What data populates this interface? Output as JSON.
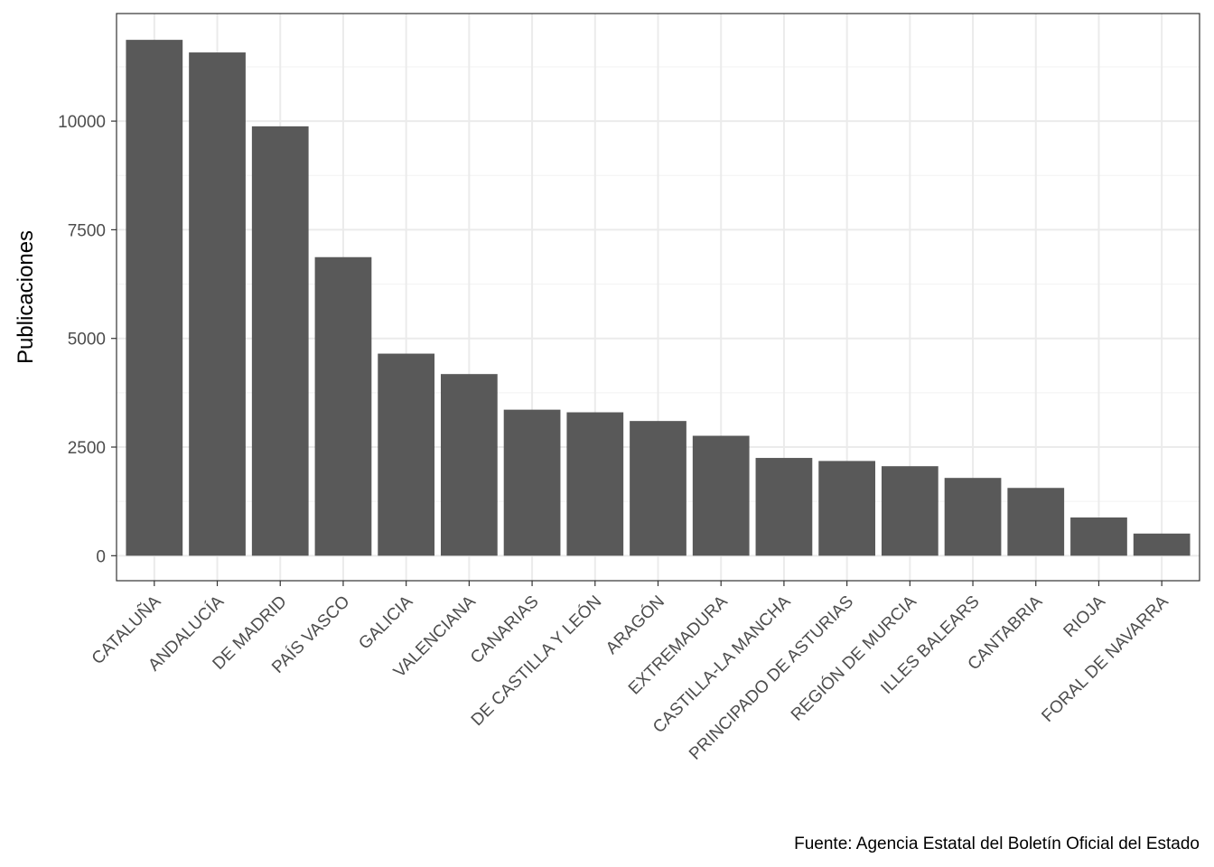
{
  "chart_data": {
    "type": "bar",
    "categories": [
      "CATALUÑA",
      "ANDALUCÍA",
      "DE MADRID",
      "PAÍS VASCO",
      "GALICIA",
      "VALENCIANA",
      "CANARIAS",
      "DE CASTILLA Y LEÓN",
      "ARAGÓN",
      "EXTREMADURA",
      "CASTILLA-LA MANCHA",
      "PRINCIPADO DE ASTURIAS",
      "REGIÓN DE MURCIA",
      "ILLES BALEARS",
      "CANTABRIA",
      "RIOJA",
      "FORAL DE NAVARRA"
    ],
    "values": [
      11870,
      11580,
      9880,
      6870,
      4650,
      4180,
      3360,
      3300,
      3100,
      2760,
      2250,
      2180,
      2060,
      1790,
      1560,
      880,
      510
    ],
    "ylabel": "Publicaciones",
    "xlabel": "",
    "ylim": [
      -575,
      12475
    ],
    "yticks": [
      0,
      2500,
      5000,
      7500,
      10000
    ],
    "ytick_labels": [
      "0",
      "2500",
      "5000",
      "7500",
      "10000"
    ],
    "grid": true,
    "bar_color": "#595959",
    "caption": "Fuente: Agencia Estatal del Boletín Oficial del Estado"
  }
}
